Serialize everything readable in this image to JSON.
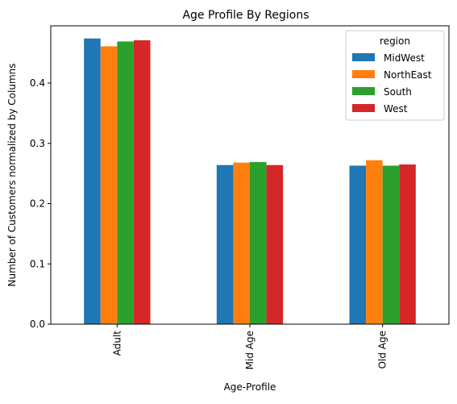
{
  "chart_data": {
    "type": "bar",
    "title": "Age Profile By Regions",
    "xlabel": "Age-Profile",
    "ylabel": "Number of Customers normalized by Columns",
    "categories": [
      "Adult",
      "Mid Age",
      "Old Age"
    ],
    "ylim": [
      0,
      0.495
    ],
    "yticks": [
      0.0,
      0.1,
      0.2,
      0.3,
      0.4
    ],
    "ytick_labels": [
      "0.0",
      "0.1",
      "0.2",
      "0.3",
      "0.4"
    ],
    "grid": false,
    "legend": {
      "title": "region",
      "placement": "top-right"
    },
    "series": [
      {
        "name": "MidWest",
        "color": "#1f77b4",
        "values": [
          0.474,
          0.264,
          0.263
        ]
      },
      {
        "name": "NorthEast",
        "color": "#ff7f0e",
        "values": [
          0.461,
          0.268,
          0.272
        ]
      },
      {
        "name": "South",
        "color": "#2ca02c",
        "values": [
          0.469,
          0.269,
          0.263
        ]
      },
      {
        "name": "West",
        "color": "#d62728",
        "values": [
          0.471,
          0.264,
          0.265
        ]
      }
    ]
  }
}
